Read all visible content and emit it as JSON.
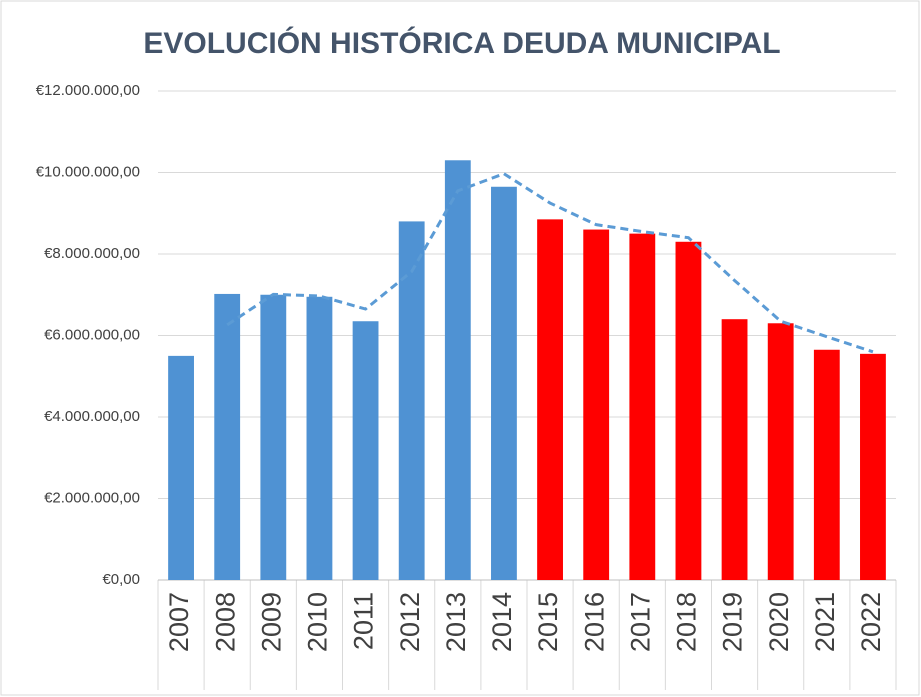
{
  "chart_data": {
    "type": "bar",
    "title": "EVOLUCIÓN HISTÓRICA DEUDA MUNICIPAL",
    "categories": [
      "2007",
      "2008",
      "2009",
      "2010",
      "2011",
      "2012",
      "2013",
      "2014",
      "2015",
      "2016",
      "2017",
      "2018",
      "2019",
      "2020",
      "2021",
      "2022"
    ],
    "values": [
      5500000,
      7020000,
      7000000,
      6950000,
      6350000,
      8800000,
      10300000,
      9650000,
      8850000,
      8600000,
      8500000,
      8300000,
      6400000,
      6300000,
      5650000,
      5550000
    ],
    "colors": [
      "#4f92d3",
      "#4f92d3",
      "#4f92d3",
      "#4f92d3",
      "#4f92d3",
      "#4f92d3",
      "#4f92d3",
      "#4f92d3",
      "#ff0000",
      "#ff0000",
      "#ff0000",
      "#ff0000",
      "#ff0000",
      "#ff0000",
      "#ff0000",
      "#ff0000"
    ],
    "trendline": {
      "color": "#5b9bd5",
      "dashed": true,
      "values": [
        null,
        6260000,
        7010000,
        6970000,
        6650000,
        7570000,
        9550000,
        9970000,
        9250000,
        8720000,
        8550000,
        8400000,
        7350000,
        6350000,
        5970000,
        5600000
      ]
    },
    "ylim": [
      0,
      12000000
    ],
    "yticks": [
      {
        "value": 0,
        "label": "€0,00"
      },
      {
        "value": 2000000,
        "label": "€2.000.000,00"
      },
      {
        "value": 4000000,
        "label": "€4.000.000,00"
      },
      {
        "value": 6000000,
        "label": "€6.000.000,00"
      },
      {
        "value": 8000000,
        "label": "€8.000.000,00"
      },
      {
        "value": 10000000,
        "label": "€10.000.000,00"
      },
      {
        "value": 12000000,
        "label": "€12.000.000,00"
      }
    ],
    "grid": true
  }
}
